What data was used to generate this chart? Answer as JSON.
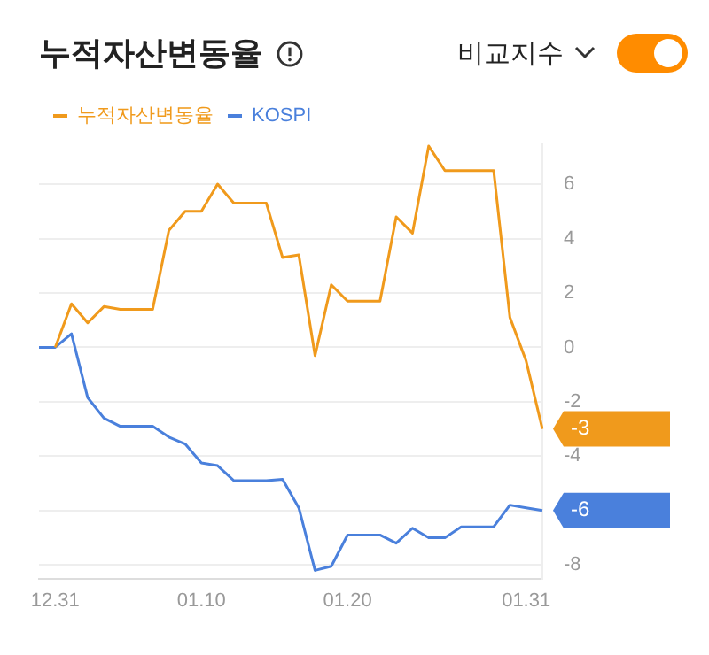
{
  "chart_data": {
    "type": "line",
    "title": "누적자산변동율",
    "annotations": [
      "비교지수"
    ],
    "categories": [
      null,
      "12.31",
      null,
      null,
      null,
      null,
      null,
      null,
      null,
      null,
      "01.10",
      null,
      null,
      null,
      null,
      null,
      null,
      null,
      null,
      "01.20",
      null,
      null,
      null,
      null,
      null,
      null,
      null,
      null,
      null,
      null,
      "01.31",
      null
    ],
    "series": [
      {
        "name": "누적자산변동율",
        "color": "#f09a1c",
        "values": [
          null,
          0,
          1.6,
          0.9,
          1.5,
          1.4,
          1.4,
          1.4,
          4.3,
          5.0,
          5.0,
          6.0,
          5.3,
          5.3,
          5.3,
          3.3,
          3.4,
          -0.3,
          2.3,
          1.7,
          1.7,
          1.7,
          4.8,
          4.2,
          7.4,
          6.5,
          6.5,
          6.5,
          6.5,
          1.1,
          -0.5,
          -3
        ],
        "value_labels": [
          null,
          null,
          null,
          null,
          null,
          null,
          null,
          null,
          null,
          null,
          null,
          null,
          null,
          null,
          null,
          null,
          null,
          null,
          null,
          null,
          null,
          null,
          null,
          null,
          null,
          null,
          null,
          null,
          null,
          null,
          null,
          "-3"
        ]
      },
      {
        "name": "KOSPI",
        "color": "#4a80dc",
        "values": [
          0,
          0,
          0.5,
          -1.85,
          -2.6,
          -2.9,
          -2.9,
          -2.9,
          -3.3,
          -3.55,
          -4.25,
          -4.35,
          -4.9,
          -4.9,
          -4.9,
          -4.85,
          -5.9,
          -8.2,
          -8.05,
          -6.9,
          -6.9,
          -6.9,
          -7.2,
          -6.65,
          -7.0,
          -7.0,
          -6.6,
          -6.6,
          -6.6,
          -5.8,
          -5.9,
          -6
        ],
        "value_labels": [
          null,
          null,
          null,
          null,
          null,
          null,
          null,
          null,
          null,
          null,
          null,
          null,
          null,
          null,
          null,
          null,
          null,
          null,
          null,
          null,
          null,
          null,
          null,
          null,
          null,
          null,
          null,
          null,
          null,
          null,
          null,
          "-6"
        ]
      }
    ],
    "ylim": [
      -8.5,
      7.5
    ],
    "yticks": [
      -8,
      {
        "value": -6,
        "label": null
      },
      -4,
      -2,
      0,
      2,
      4,
      6
    ],
    "grid": "y",
    "legend": "top left",
    "marker": "none",
    "line_style": "solid"
  }
}
